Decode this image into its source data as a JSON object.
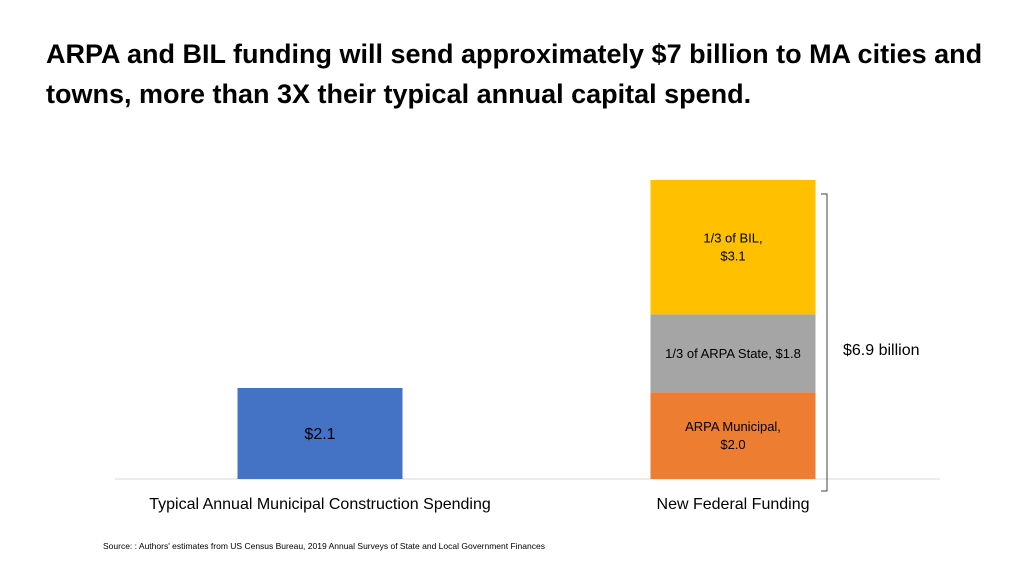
{
  "title": "ARPA and BIL funding will send approximately $7 billion to MA cities and towns, more than 3X their typical annual capital spend.",
  "source": "Source: : Authors' estimates from US Census Bureau, 2019 Annual Surveys of State and Local Government Finances",
  "chart_data": {
    "type": "bar",
    "stacked": true,
    "title": "ARPA and BIL funding will send approximately $7 billion to MA cities and towns, more than 3X their typical annual capital spend.",
    "categories": [
      "Typical Annual Municipal Construction Spending",
      "New Federal Funding"
    ],
    "series": [
      {
        "name": "ARPA Municipal",
        "values": [
          null,
          2.0
        ],
        "color": "#ED7D31",
        "label_lines": [
          "ARPA Municipal,",
          "$2.0"
        ]
      },
      {
        "name": "1/3 of ARPA State",
        "values": [
          null,
          1.8
        ],
        "color": "#A5A5A5",
        "label_lines": [
          "1/3 of ARPA State,  $1.8"
        ]
      },
      {
        "name": "1/3 of BIL",
        "values": [
          null,
          3.1
        ],
        "color": "#FFC000",
        "label_lines": [
          "1/3 of BIL,",
          "$3.1"
        ]
      },
      {
        "name": "Typical annual spending",
        "values": [
          2.1,
          null
        ],
        "color": "#4472C4",
        "label_lines": [
          "$2.1"
        ]
      }
    ],
    "total_annotation": "$6.9 billion",
    "ylim": [
      0,
      6.9
    ],
    "grid": false,
    "legend": "none",
    "xlabel": "",
    "ylabel": ""
  }
}
